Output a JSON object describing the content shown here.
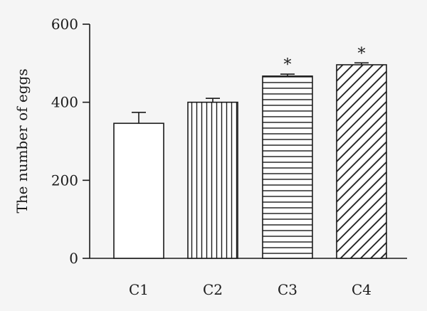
{
  "chart_data": {
    "type": "bar",
    "title": "",
    "xlabel": "",
    "ylabel": "The number of eggs",
    "ylim": [
      0,
      600
    ],
    "yticks": [
      0,
      200,
      400,
      600
    ],
    "grid": false,
    "categories": [
      "C1",
      "C2",
      "C3",
      "C4"
    ],
    "values": [
      346,
      400,
      467,
      496
    ],
    "errors": [
      28,
      10,
      5,
      5
    ],
    "patterns": [
      "none",
      "vertical-lines",
      "horizontal-lines",
      "diagonal-lines"
    ],
    "significance": [
      "",
      "",
      "*",
      "*"
    ],
    "colors": {
      "ink": "#1a1a1a",
      "background": "#f5f5f5",
      "bar_fill": "#ffffff"
    }
  }
}
